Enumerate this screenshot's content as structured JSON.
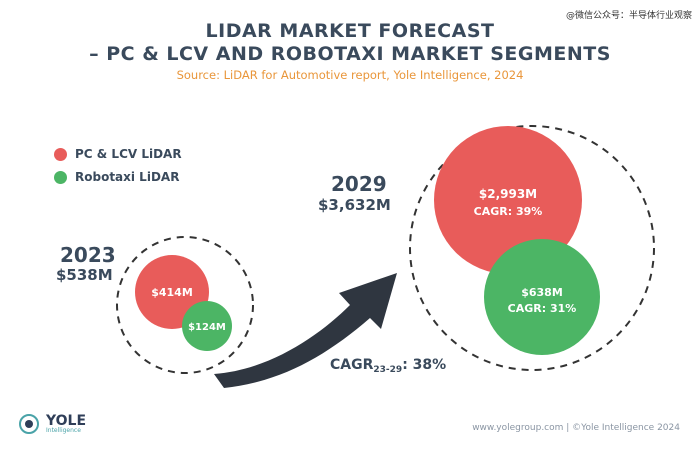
{
  "watermark": "@微信公众号：半导体行业观察",
  "chart_data": {
    "type": "bubble",
    "title": "LIDAR MARKET FORECAST",
    "subtitle": "– PC & LCV AND ROBOTAXI MARKET SEGMENTS",
    "source": "Source: LiDAR for Automotive report, Yole Intelligence, 2024",
    "legend": [
      {
        "name": "PC & LCV LiDAR",
        "color": "#e85c5a"
      },
      {
        "name": "Robotaxi LiDAR",
        "color": "#4cb565"
      }
    ],
    "years": [
      {
        "year": "2023",
        "total": "$538M",
        "segments": [
          {
            "series": "PC & LCV LiDAR",
            "value": 414,
            "label": "$414M"
          },
          {
            "series": "Robotaxi LiDAR",
            "value": 124,
            "label": "$124M"
          }
        ]
      },
      {
        "year": "2029",
        "total": "$3,632M",
        "segments": [
          {
            "series": "PC & LCV LiDAR",
            "value": 2993,
            "label": "$2,993M",
            "cagr": "CAGR: 39%"
          },
          {
            "series": "Robotaxi LiDAR",
            "value": 638,
            "label": "$638M",
            "cagr": "CAGR: 31%"
          }
        ]
      }
    ],
    "overall_cagr": {
      "prefix": "CAGR",
      "sub": "23-29",
      "value": ": 38%"
    }
  },
  "footer": "www.yolegroup.com | ©Yole Intelligence 2024",
  "logo": {
    "name": "YOLE",
    "sub": "Intelligence"
  }
}
